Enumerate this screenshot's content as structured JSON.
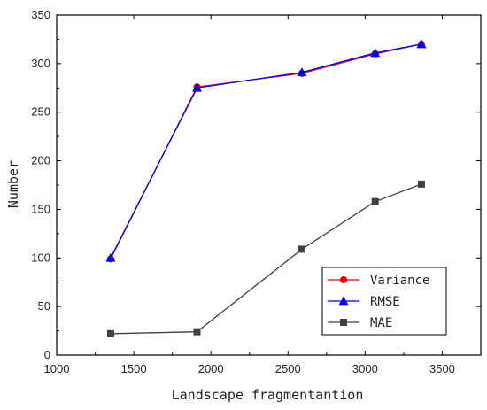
{
  "chart_data": {
    "type": "line",
    "xlabel": "Landscape fragmentantion",
    "ylabel": "Number",
    "xlim": [
      1000,
      3750
    ],
    "ylim": [
      0,
      350
    ],
    "xticks": [
      1000,
      1500,
      2000,
      2500,
      3000,
      3500
    ],
    "yticks": [
      0,
      50,
      100,
      150,
      200,
      250,
      300,
      350
    ],
    "x_tick_labels": [
      "1000",
      "1500",
      "2000",
      "2500",
      "3000",
      "3500"
    ],
    "y_tick_labels": [
      "0",
      "50",
      "100",
      "150",
      "200",
      "250",
      "300",
      "350"
    ],
    "grid": false,
    "legend_position": "bottom-right",
    "series": [
      {
        "name": "Variance",
        "color": "#e00000",
        "marker": "circle",
        "x": [
          1350,
          1910,
          2590,
          3065,
          3365
        ],
        "y": [
          99,
          276,
          290,
          310,
          320
        ]
      },
      {
        "name": "RMSE",
        "color": "#0000e0",
        "marker": "triangle",
        "x": [
          1350,
          1910,
          2590,
          3065,
          3365
        ],
        "y": [
          100,
          275,
          291,
          311,
          320
        ]
      },
      {
        "name": "MAE",
        "color": "#404040",
        "marker": "square",
        "x": [
          1350,
          1910,
          2590,
          3065,
          3365
        ],
        "y": [
          22,
          24,
          109,
          158,
          176
        ]
      }
    ]
  }
}
